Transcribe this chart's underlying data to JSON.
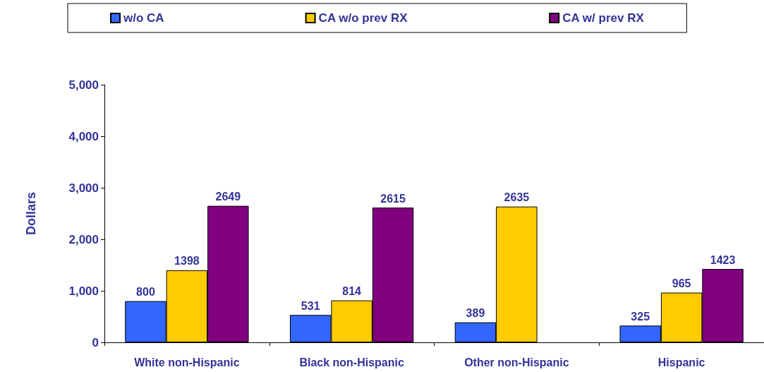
{
  "chart_data": {
    "type": "bar",
    "ylabel": "Dollars",
    "categories": [
      "White non-Hispanic",
      "Black non-Hispanic",
      "Other non-Hispanic",
      "Hispanic"
    ],
    "series": [
      {
        "name": "w/o CA",
        "color": "#3366ff",
        "values": [
          800,
          531,
          389,
          325
        ]
      },
      {
        "name": "CA w/o prev RX",
        "color": "#ffcc00",
        "values": [
          1398,
          814,
          2635,
          965
        ]
      },
      {
        "name": "CA w/ prev RX",
        "color": "#800080",
        "values": [
          2649,
          2615,
          null,
          1423
        ]
      }
    ],
    "ylim": [
      0,
      5000
    ],
    "yticks": [
      {
        "value": 0,
        "label": "0"
      },
      {
        "value": 1000,
        "label": "1,000"
      },
      {
        "value": 2000,
        "label": "2,000"
      },
      {
        "value": 3000,
        "label": "3,000"
      },
      {
        "value": 4000,
        "label": "4,000"
      },
      {
        "value": 5000,
        "label": "5,000"
      }
    ],
    "data_labels": true,
    "legend": "top",
    "grid": false
  }
}
